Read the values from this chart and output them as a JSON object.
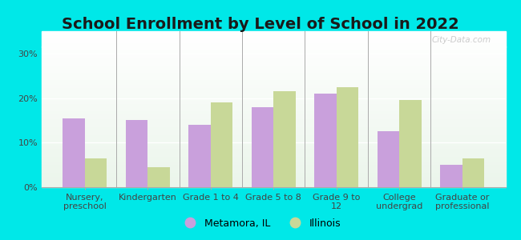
{
  "title": "School Enrollment by Level of School in 2022",
  "categories": [
    "Nursery,\npreschool",
    "Kindergarten",
    "Grade 1 to 4",
    "Grade 5 to 8",
    "Grade 9 to\n12",
    "College\nundergrad",
    "Graduate or\nprofessional"
  ],
  "metamora_values": [
    15.5,
    15.0,
    14.0,
    18.0,
    21.0,
    12.5,
    5.0
  ],
  "illinois_values": [
    6.5,
    4.5,
    19.0,
    21.5,
    22.5,
    19.5,
    6.5
  ],
  "metamora_color": "#c9a0dc",
  "illinois_color": "#c8d898",
  "background_color": "#00e8e8",
  "ylim": [
    0,
    35
  ],
  "yticks": [
    0,
    10,
    20,
    30
  ],
  "ytick_labels": [
    "0%",
    "10%",
    "20%",
    "30%"
  ],
  "legend_metamora": "Metamora, IL",
  "legend_illinois": "Illinois",
  "bar_width": 0.35,
  "watermark": "City-Data.com",
  "title_fontsize": 14,
  "tick_fontsize": 8,
  "legend_fontsize": 9
}
